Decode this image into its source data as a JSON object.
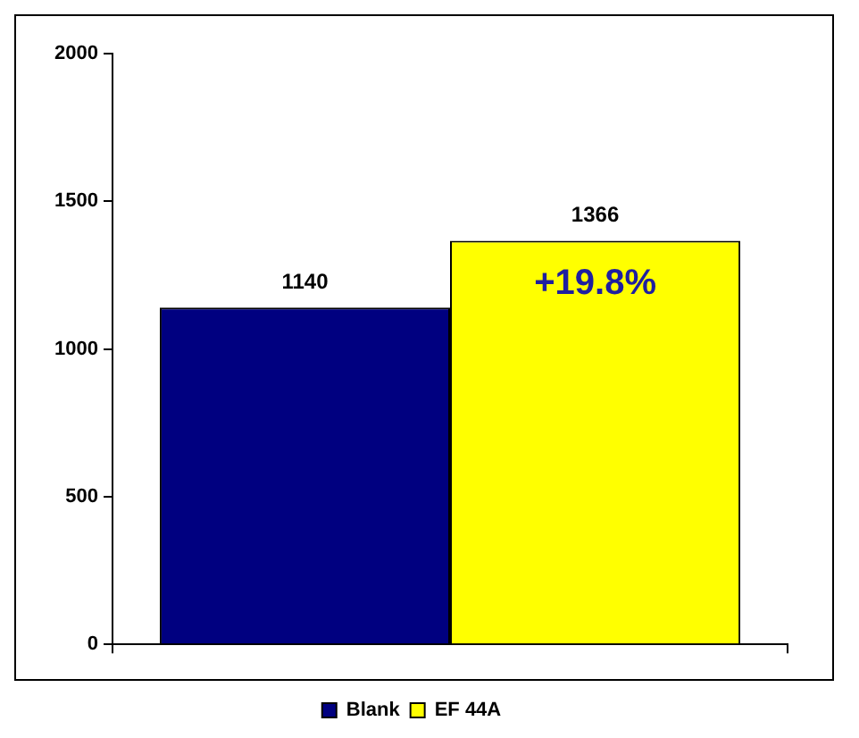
{
  "chart_data": {
    "type": "bar",
    "categories": [
      null
    ],
    "series": [
      {
        "name": "Blank",
        "color": "#000080",
        "values": [
          1140
        ]
      },
      {
        "name": "EF 44A",
        "color": "#ffff00",
        "values": [
          1366
        ]
      }
    ],
    "ylim": [
      0,
      2000
    ],
    "yticks": [
      0,
      500,
      1000,
      1500,
      2000
    ],
    "grid": false,
    "legend": "bottom",
    "data_labels": true,
    "annotations": [
      "+19.8%"
    ]
  }
}
